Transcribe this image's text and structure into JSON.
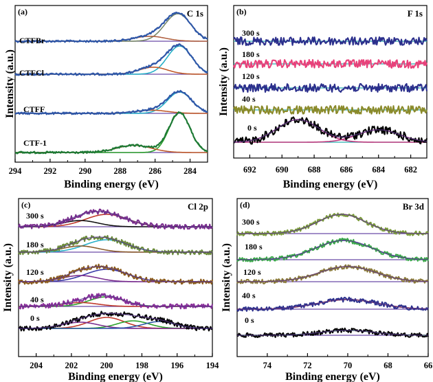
{
  "chart_data": [
    {
      "type": "line",
      "panel_label": "(a)",
      "title": "C 1s",
      "xlabel": "Binding energy (eV)",
      "ylabel": "Intensity (a.u.)",
      "xlim": [
        294,
        283
      ],
      "x_ticks": [
        294,
        292,
        290,
        288,
        286,
        284
      ],
      "series": [
        {
          "name": "CTFBr",
          "color": "#2f57a8",
          "peaks": [
            {
              "center": 284.7,
              "height": 1.0,
              "width": 0.75,
              "color": "#7a8a6a"
            },
            {
              "center": 286.3,
              "height": 0.18,
              "width": 0.9,
              "color": "#b06040"
            }
          ]
        },
        {
          "name": "CTFCl",
          "color": "#2f57a8",
          "peaks": [
            {
              "center": 284.6,
              "height": 1.0,
              "width": 0.7,
              "color": "#28b0c8"
            },
            {
              "center": 286.1,
              "height": 0.25,
              "width": 0.8,
              "color": "#c05a2a"
            }
          ]
        },
        {
          "name": "CTFF",
          "color": "#2f57a8",
          "peaks": [
            {
              "center": 284.6,
              "height": 1.0,
              "width": 0.7,
              "color": "#28b0c8"
            },
            {
              "center": 286.2,
              "height": 0.15,
              "width": 0.9,
              "color": "#c05a2a"
            }
          ]
        },
        {
          "name": "CTF-1",
          "color": "#1e7a35",
          "peaks": [
            {
              "center": 284.6,
              "height": 1.0,
              "width": 0.6,
              "color": "#2ca02c"
            },
            {
              "center": 287.2,
              "height": 0.18,
              "width": 1.0,
              "color": "#c05a2a"
            }
          ]
        }
      ]
    },
    {
      "type": "line",
      "panel_label": "(b)",
      "title": "F 1s",
      "xlabel": "Binding energy (eV)",
      "ylabel": "Intensity (a.u.)",
      "xlim": [
        693,
        681
      ],
      "x_ticks": [
        692,
        690,
        688,
        686,
        684,
        682
      ],
      "series": [
        {
          "name": "300 s",
          "color": "#2b2f8c",
          "peaks": []
        },
        {
          "name": "180 s",
          "color": "#e8417a",
          "peaks": []
        },
        {
          "name": "120 s",
          "color": "#2b2f8c",
          "peaks": []
        },
        {
          "name": "40 s",
          "color": "#8a8a2a",
          "peaks": []
        },
        {
          "name": "0 s",
          "color": "#000000",
          "peaks": [
            {
              "center": 689.0,
              "height": 1.0,
              "width": 1.3,
              "color": "#c0397e"
            },
            {
              "center": 684.0,
              "height": 0.55,
              "width": 1.3,
              "color": "#c0397e"
            }
          ]
        }
      ]
    },
    {
      "type": "line",
      "panel_label": "(c)",
      "title": "Cl 2p",
      "xlabel": "Binding energy (eV)",
      "ylabel": "Intensity (a.u.)",
      "xlim": [
        205,
        194
      ],
      "x_ticks": [
        204,
        202,
        200,
        198,
        196,
        194
      ],
      "series": [
        {
          "name": "300 s",
          "color": "#7b2d8e",
          "peaks": [
            {
              "center": 200.0,
              "height": 1.0,
              "width": 1.2,
              "color": "#c0392b"
            },
            {
              "center": 201.5,
              "height": 0.5,
              "width": 1.0,
              "color": "#111111"
            }
          ]
        },
        {
          "name": "180 s",
          "color": "#6a8a3a",
          "peaks": [
            {
              "center": 200.0,
              "height": 1.0,
              "width": 1.2,
              "color": "#28b0c8"
            },
            {
              "center": 201.5,
              "height": 0.5,
              "width": 1.0,
              "color": "#8a5a2a"
            }
          ]
        },
        {
          "name": "120 s",
          "color": "#8a5a1a",
          "peaks": [
            {
              "center": 200.0,
              "height": 1.0,
              "width": 1.2,
              "color": "#3a3aa8"
            },
            {
              "center": 201.5,
              "height": 0.5,
              "width": 1.0,
              "color": "#7a2d8e"
            }
          ]
        },
        {
          "name": "40 s",
          "color": "#8a2d9a",
          "peaks": [
            {
              "center": 200.0,
              "height": 1.0,
              "width": 1.0,
              "color": "#2ca02c"
            },
            {
              "center": 201.5,
              "height": 0.4,
              "width": 1.0,
              "color": "#c0392b"
            }
          ]
        },
        {
          "name": "0 s",
          "color": "#000000",
          "peaks": [
            {
              "center": 200.0,
              "height": 0.8,
              "width": 1.0,
              "color": "#c0392b"
            },
            {
              "center": 198.5,
              "height": 0.55,
              "width": 0.9,
              "color": "#2ca02c"
            },
            {
              "center": 201.5,
              "height": 0.45,
              "width": 1.0,
              "color": "#7a2d8e"
            },
            {
              "center": 197.0,
              "height": 0.5,
              "width": 0.9,
              "color": "#2f57a8"
            }
          ]
        }
      ]
    },
    {
      "type": "line",
      "panel_label": "(d)",
      "title": "Br 3d",
      "xlabel": "Binding energy (eV)",
      "ylabel": "Intensity (a.u.)",
      "xlim": [
        75.5,
        66
      ],
      "x_ticks": [
        74,
        72,
        70,
        68,
        66
      ],
      "series": [
        {
          "name": "300 s",
          "color": "#7a9a3a",
          "peaks": [
            {
              "center": 70.3,
              "height": 1.0,
              "width": 1.2,
              "color": "#8a6a4a"
            }
          ]
        },
        {
          "name": "180 s",
          "color": "#3aa84a",
          "peaks": [
            {
              "center": 70.2,
              "height": 1.0,
              "width": 1.4,
              "color": "#2b3a9a"
            }
          ]
        },
        {
          "name": "120 s",
          "color": "#8a7a3a",
          "peaks": [
            {
              "center": 70.0,
              "height": 1.0,
              "width": 1.4,
              "color": "#b87a2a"
            }
          ]
        },
        {
          "name": "40 s",
          "color": "#2b2f8c",
          "peaks": [
            {
              "center": 70.0,
              "height": 1.0,
              "width": 1.5,
              "color": "#b02a2a"
            }
          ]
        },
        {
          "name": "0 s",
          "color": "#000000",
          "peaks": [
            {
              "center": 70.0,
              "height": 0.6,
              "width": 1.3,
              "color": "#3aa84a"
            }
          ]
        }
      ]
    }
  ]
}
